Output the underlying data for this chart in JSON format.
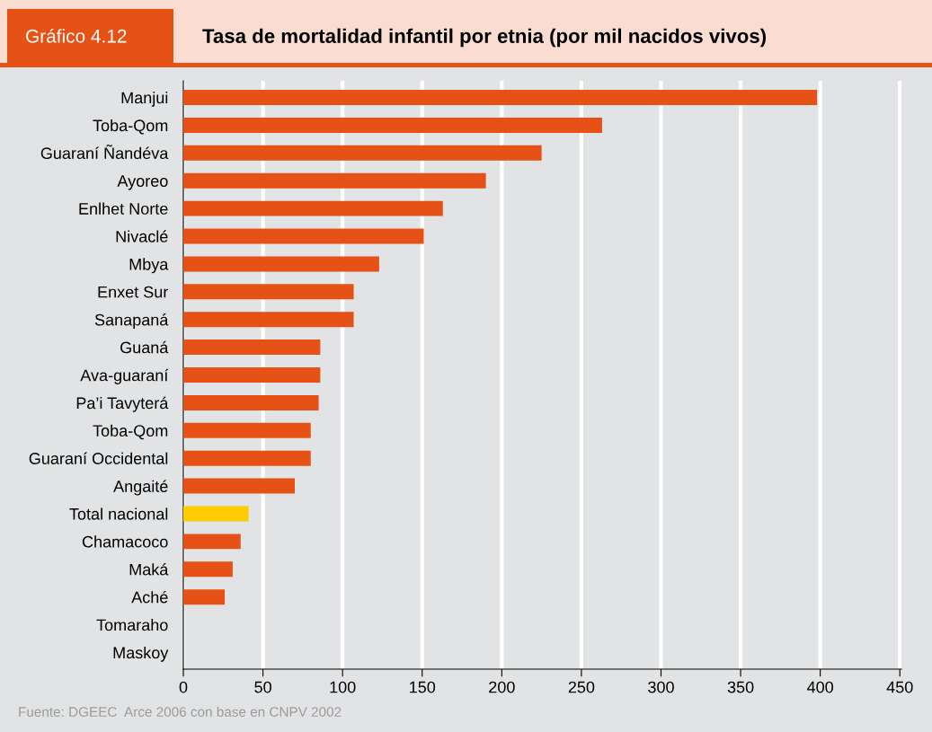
{
  "chart_data": {
    "type": "bar",
    "orientation": "horizontal",
    "title": "Tasa de mortalidad infantil por etnia (por mil nacidos vivos)",
    "subtitle": "Gráfico 4.12",
    "categories": [
      "Manjui",
      "Toba-Qom",
      "Guaraní Ñandéva",
      "Ayoreo",
      "Enlhet Norte",
      "Nivaclé",
      "Mbya",
      "Enxet Sur",
      "Sanapaná",
      "Guaná",
      "Ava-guaraní",
      "Pa’i Tavyterá",
      "Toba-Qom",
      "Guaraní Occidental",
      "Angaité",
      "Total nacional",
      "Chamacoco",
      "Maká",
      "Aché",
      "Tomaraho",
      "Maskoy"
    ],
    "values": [
      398,
      263,
      225,
      190,
      163,
      151,
      123,
      107,
      107,
      86,
      86,
      85,
      80,
      80,
      70,
      41,
      36,
      31,
      26,
      0,
      0
    ],
    "colors": [
      "#e65215",
      "#e65215",
      "#e65215",
      "#e65215",
      "#e65215",
      "#e65215",
      "#e65215",
      "#e65215",
      "#e65215",
      "#e65215",
      "#e65215",
      "#e65215",
      "#e65215",
      "#e65215",
      "#e65215",
      "#ffcc00",
      "#e65215",
      "#e65215",
      "#e65215",
      "#e65215",
      "#e65215"
    ],
    "xlim": [
      0,
      451
    ],
    "xticks": [
      0,
      50,
      100,
      150,
      200,
      250,
      300,
      350,
      400,
      450
    ],
    "grid": "x",
    "annotations": [
      "Fuente: DGEEC  Arce 2006 con base en CNPV 2002"
    ]
  }
}
